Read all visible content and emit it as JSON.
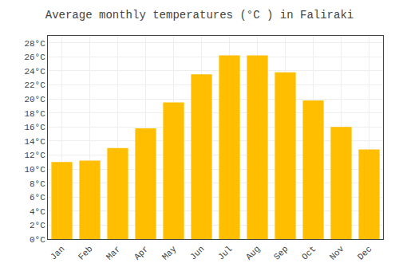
{
  "chart_data": {
    "type": "bar",
    "title": "Average monthly temperatures (°C ) in Faliraki",
    "categories": [
      "Jan",
      "Feb",
      "Mar",
      "Apr",
      "May",
      "Jun",
      "Jul",
      "Aug",
      "Sep",
      "Oct",
      "Nov",
      "Dec"
    ],
    "values": [
      11,
      11.2,
      13,
      15.8,
      19.5,
      23.5,
      26.2,
      26.2,
      23.8,
      19.8,
      16,
      12.8
    ],
    "color": "#FFBE00",
    "ylim": [
      0,
      29
    ],
    "yticks": [
      {
        "value": 0,
        "label": "0°C"
      },
      {
        "value": 2,
        "label": "2°C"
      },
      {
        "value": 4,
        "label": "4°C"
      },
      {
        "value": 6,
        "label": "6°C"
      },
      {
        "value": 8,
        "label": "8°C"
      },
      {
        "value": 10,
        "label": "10°C"
      },
      {
        "value": 12,
        "label": "12°C"
      },
      {
        "value": 14,
        "label": "14°C"
      },
      {
        "value": 16,
        "label": "16°C"
      },
      {
        "value": 18,
        "label": "18°C"
      },
      {
        "value": 20,
        "label": "20°C"
      },
      {
        "value": 22,
        "label": "22°C"
      },
      {
        "value": 24,
        "label": "24°C"
      },
      {
        "value": 26,
        "label": "26°C"
      },
      {
        "value": 28,
        "label": "28°C"
      }
    ],
    "grid": true
  }
}
